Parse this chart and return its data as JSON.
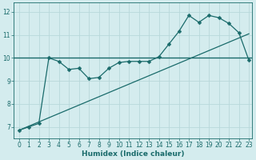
{
  "xlabel": "Humidex (Indice chaleur)",
  "bg_color": "#d4ecee",
  "line_color": "#1a6b6b",
  "grid_color": "#b8d8da",
  "xlim": [
    -0.5,
    23.3
  ],
  "ylim": [
    6.5,
    12.4
  ],
  "yticks": [
    7,
    8,
    9,
    10,
    11,
    12
  ],
  "xticks": [
    0,
    1,
    2,
    3,
    4,
    5,
    6,
    7,
    8,
    9,
    10,
    11,
    12,
    13,
    14,
    15,
    16,
    17,
    18,
    19,
    20,
    21,
    22,
    23
  ],
  "wavy_x": [
    0,
    1,
    2,
    3,
    4,
    5,
    6,
    7,
    8,
    9,
    10,
    11,
    12,
    13,
    14,
    15,
    16,
    17,
    18,
    19,
    20,
    21,
    22,
    23
  ],
  "wavy_y": [
    6.85,
    7.0,
    7.15,
    10.0,
    9.85,
    9.5,
    9.55,
    9.1,
    9.15,
    9.55,
    9.8,
    9.85,
    9.85,
    9.85,
    10.05,
    10.6,
    11.15,
    11.85,
    11.55,
    11.85,
    11.75,
    11.5,
    11.1,
    9.9
  ],
  "trend_x": [
    0,
    23
  ],
  "trend_y": [
    6.85,
    11.05
  ],
  "hline_y": 10.0,
  "marker_size": 2.5,
  "tick_fontsize": 5.5,
  "xlabel_fontsize": 6.5
}
